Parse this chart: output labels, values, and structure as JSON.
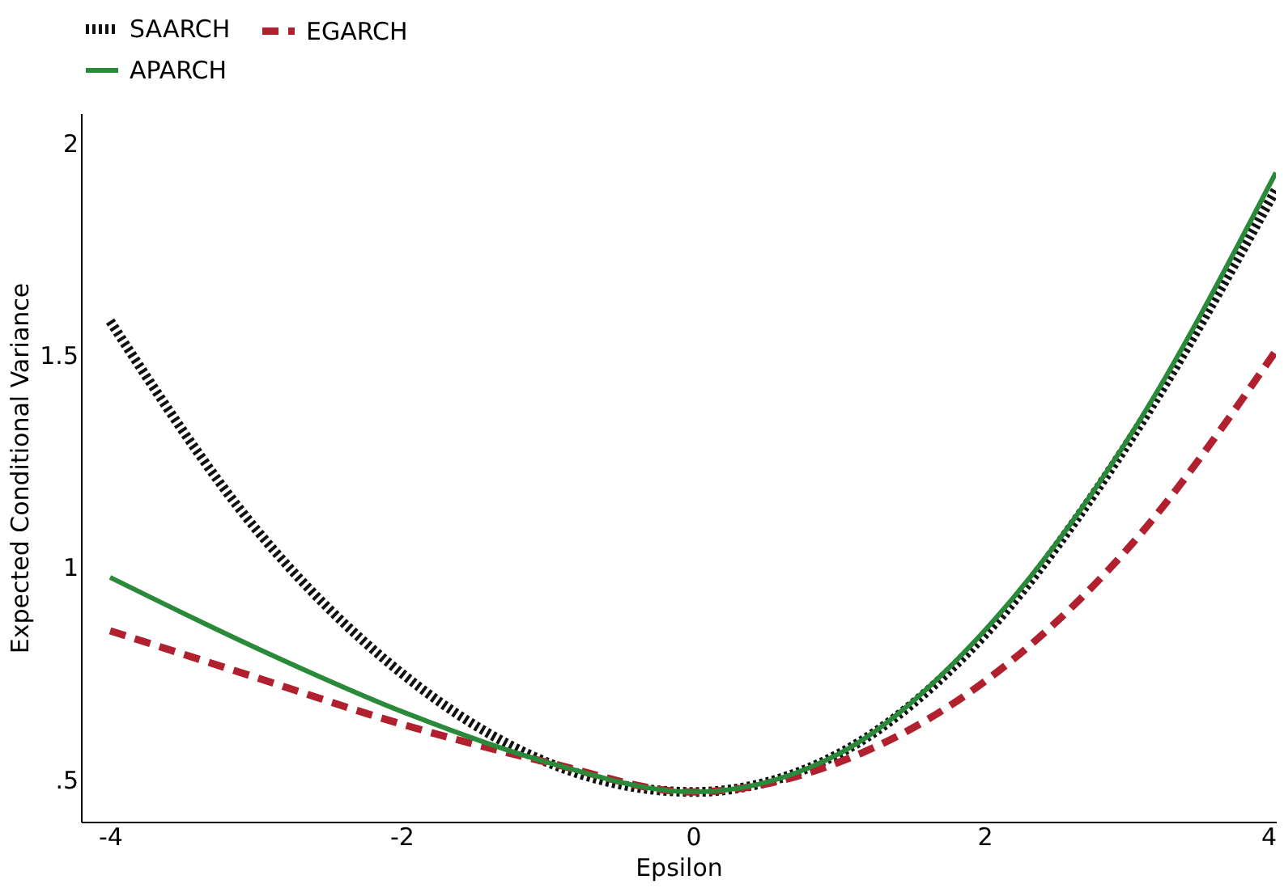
{
  "chart_data": {
    "type": "line",
    "xlabel": "Epsilon",
    "ylabel": "Expected Conditional Variance",
    "x": [
      -4,
      -3,
      -2,
      -1,
      0,
      1,
      2,
      3,
      4
    ],
    "series": [
      {
        "name": "SAARCH",
        "color": "#111111",
        "line_style": "dotted",
        "values": [
          1.58,
          1.09,
          0.75,
          0.54,
          0.47,
          0.56,
          0.84,
          1.3,
          1.89
        ]
      },
      {
        "name": "EGARCH",
        "color": "#b0202e",
        "line_style": "dashed",
        "values": [
          0.85,
          0.74,
          0.63,
          0.54,
          0.47,
          0.54,
          0.73,
          1.05,
          1.51
        ]
      },
      {
        "name": "APARCH",
        "color": "#2a8a3a",
        "line_style": "solid",
        "values": [
          0.976,
          0.81,
          0.66,
          0.54,
          0.47,
          0.56,
          0.85,
          1.31,
          1.93
        ]
      }
    ],
    "xlim": [
      -4.2,
      4
    ],
    "xticks": [
      -4,
      -2,
      0,
      2,
      4
    ],
    "ylim": [
      0.4,
      2.07
    ],
    "yticks": [
      {
        "value": 0.5,
        "label": ".5"
      },
      1,
      1.5,
      2
    ],
    "grid": false,
    "legend": "top left"
  }
}
